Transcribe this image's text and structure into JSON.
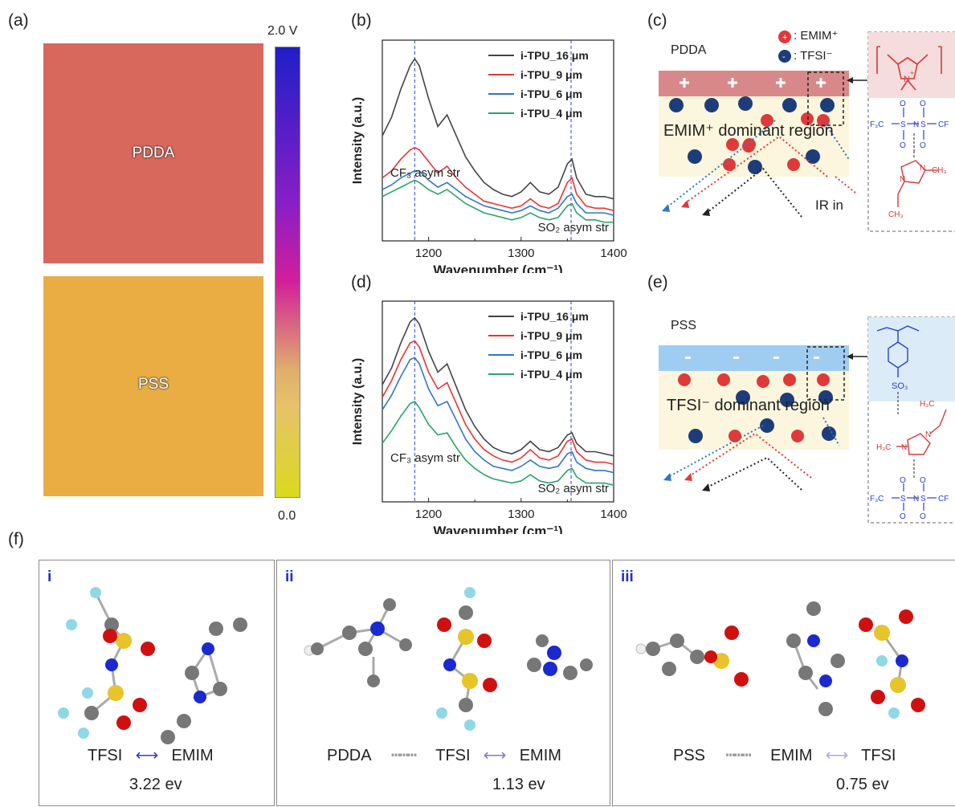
{
  "panel_labels": {
    "a": "(a)",
    "b": "(b)",
    "c": "(c)",
    "d": "(d)",
    "e": "(e)",
    "f": "(f)"
  },
  "panel_a": {
    "pdda_label": "PDDA",
    "pss_label": "PSS",
    "colorbar_max": "2.0 V",
    "colorbar_min": "0.0",
    "colors": {
      "pdda": "#d8675c",
      "pss": "#e9ad44",
      "bar_top": "#1f1fc8",
      "bar_mid": "#d21e9a",
      "bar_bottom": "#dada1e"
    }
  },
  "panel_c": {
    "title": "PDDA",
    "legend_cation": ": EMIM⁺",
    "legend_anion": ": TFSI⁻",
    "region_label": "EMIM⁺ dominant region",
    "ir_label": "IR in",
    "chem_left": "F₃C",
    "chem_right": "CF",
    "chem_methyl": "CH₃",
    "chem_ethyl": "CH₃"
  },
  "panel_e": {
    "title": "PSS",
    "region_label": "TFSI⁻ dominant region",
    "chem_sulfonate": "SO₃",
    "chem_h3c_top": "H₃C",
    "chem_h3c_left": "H₃C",
    "chem_left": "F₃C",
    "chem_right": "CF"
  },
  "panel_f": {
    "items": [
      {
        "roman": "i",
        "caption_left": "TFSI",
        "caption_right": "EMIM",
        "energy": "3.22 ev"
      },
      {
        "roman": "ii",
        "caption_pre": "PDDA",
        "caption_left": "TFSI",
        "caption_right": "EMIM",
        "energy": "1.13 ev"
      },
      {
        "roman": "iii",
        "caption_pre": "PSS",
        "caption_left": "EMIM",
        "caption_right": "TFSI",
        "energy": "0.75 ev"
      }
    ]
  },
  "chart_data": [
    {
      "type": "line",
      "panel": "b",
      "xlabel": "Wavenumber (cm⁻¹)",
      "ylabel": "Intensity (a.u.)",
      "xlim": [
        1150,
        1400
      ],
      "xticks": [
        "1200",
        "1300",
        "1400"
      ],
      "x": [
        1150,
        1160,
        1170,
        1180,
        1185,
        1190,
        1200,
        1210,
        1220,
        1230,
        1240,
        1250,
        1260,
        1270,
        1280,
        1290,
        1300,
        1310,
        1320,
        1330,
        1340,
        1350,
        1355,
        1360,
        1370,
        1380,
        1390,
        1400
      ],
      "series": [
        {
          "name": "i-TPU_16 μm",
          "color": "#444444",
          "values": [
            0.7,
            0.78,
            0.9,
            1.0,
            1.03,
            1.0,
            0.86,
            0.74,
            0.79,
            0.7,
            0.61,
            0.55,
            0.5,
            0.47,
            0.45,
            0.44,
            0.46,
            0.5,
            0.46,
            0.45,
            0.48,
            0.58,
            0.6,
            0.52,
            0.45,
            0.44,
            0.44,
            0.43
          ]
        },
        {
          "name": "i-TPU_9 μm",
          "color": "#e83535",
          "values": [
            0.52,
            0.55,
            0.6,
            0.64,
            0.65,
            0.64,
            0.59,
            0.54,
            0.57,
            0.52,
            0.48,
            0.45,
            0.42,
            0.41,
            0.4,
            0.39,
            0.4,
            0.43,
            0.4,
            0.39,
            0.41,
            0.5,
            0.52,
            0.45,
            0.4,
            0.39,
            0.39,
            0.38
          ]
        },
        {
          "name": "i-TPU_6 μm",
          "color": "#2f76c9",
          "values": [
            0.47,
            0.49,
            0.52,
            0.54,
            0.55,
            0.55,
            0.51,
            0.48,
            0.5,
            0.47,
            0.44,
            0.42,
            0.4,
            0.39,
            0.38,
            0.37,
            0.38,
            0.4,
            0.38,
            0.37,
            0.39,
            0.44,
            0.45,
            0.41,
            0.37,
            0.37,
            0.37,
            0.36
          ]
        },
        {
          "name": "i-TPU_4 μm",
          "color": "#2aa36b",
          "values": [
            0.44,
            0.46,
            0.48,
            0.5,
            0.51,
            0.5,
            0.47,
            0.45,
            0.47,
            0.44,
            0.41,
            0.39,
            0.37,
            0.36,
            0.35,
            0.34,
            0.35,
            0.37,
            0.35,
            0.34,
            0.35,
            0.4,
            0.41,
            0.37,
            0.34,
            0.34,
            0.33,
            0.33
          ]
        }
      ],
      "annotations": [
        "CF₃ asym str",
        "SO₂ asym str"
      ],
      "markers_x": [
        1185,
        1354
      ]
    },
    {
      "type": "line",
      "panel": "d",
      "xlabel": "Wavenumber (cm⁻¹)",
      "ylabel": "Intensity (a.u.)",
      "xlim": [
        1150,
        1400
      ],
      "xticks": [
        "1200",
        "1300",
        "1400"
      ],
      "x": [
        1150,
        1160,
        1170,
        1180,
        1185,
        1190,
        1200,
        1210,
        1220,
        1230,
        1240,
        1250,
        1260,
        1270,
        1280,
        1290,
        1300,
        1310,
        1320,
        1330,
        1340,
        1350,
        1355,
        1360,
        1370,
        1380,
        1390,
        1400
      ],
      "series": [
        {
          "name": "i-TPU_16 μm",
          "color": "#444444",
          "values": [
            0.68,
            0.76,
            0.88,
            0.98,
            1.0,
            0.97,
            0.84,
            0.74,
            0.78,
            0.67,
            0.56,
            0.48,
            0.42,
            0.38,
            0.36,
            0.35,
            0.37,
            0.41,
            0.37,
            0.36,
            0.38,
            0.44,
            0.45,
            0.4,
            0.36,
            0.36,
            0.35,
            0.34
          ]
        },
        {
          "name": "i-TPU_9 μm",
          "color": "#e83535",
          "values": [
            0.62,
            0.7,
            0.8,
            0.88,
            0.89,
            0.86,
            0.74,
            0.66,
            0.69,
            0.59,
            0.49,
            0.42,
            0.37,
            0.34,
            0.32,
            0.31,
            0.33,
            0.37,
            0.33,
            0.32,
            0.34,
            0.41,
            0.42,
            0.36,
            0.32,
            0.31,
            0.31,
            0.3
          ]
        },
        {
          "name": "i-TPU_6 μm",
          "color": "#2f76c9",
          "values": [
            0.56,
            0.63,
            0.72,
            0.8,
            0.81,
            0.78,
            0.66,
            0.58,
            0.6,
            0.51,
            0.42,
            0.36,
            0.32,
            0.29,
            0.28,
            0.27,
            0.29,
            0.32,
            0.29,
            0.28,
            0.29,
            0.35,
            0.36,
            0.31,
            0.28,
            0.27,
            0.27,
            0.26
          ]
        },
        {
          "name": "i-TPU_4 μm",
          "color": "#2aa36b",
          "values": [
            0.4,
            0.46,
            0.53,
            0.59,
            0.6,
            0.57,
            0.49,
            0.44,
            0.45,
            0.38,
            0.32,
            0.28,
            0.25,
            0.23,
            0.22,
            0.21,
            0.22,
            0.25,
            0.22,
            0.21,
            0.22,
            0.27,
            0.28,
            0.24,
            0.21,
            0.21,
            0.21,
            0.2
          ]
        }
      ],
      "annotations": [
        "CF₃ asym str",
        "SO₂ asym str"
      ],
      "markers_x": [
        1185,
        1354
      ]
    }
  ]
}
